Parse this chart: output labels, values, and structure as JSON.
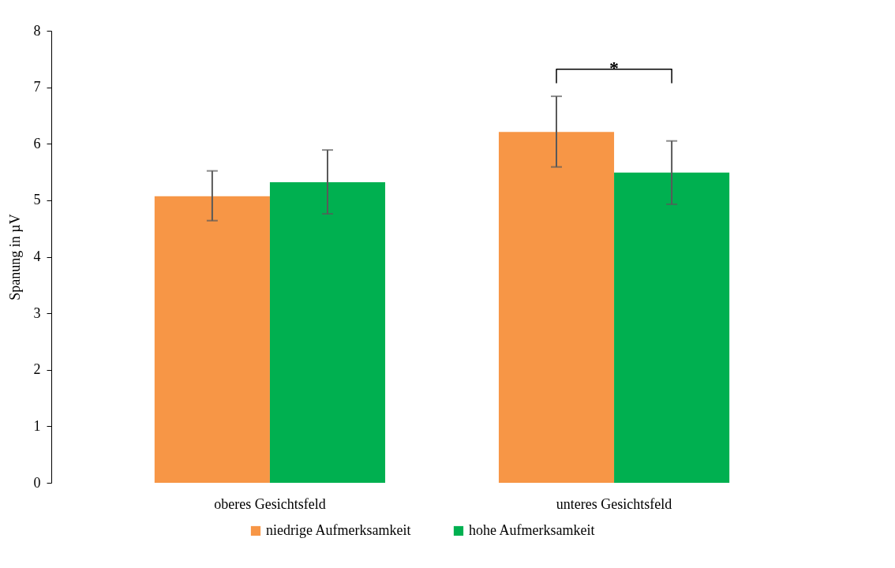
{
  "chart_data": {
    "type": "bar",
    "ylabel": "Spanung in µV",
    "categories": [
      "oberes Gesichtsfeld",
      "unteres Gesichtsfeld"
    ],
    "series": [
      {
        "name": "niedrige Aufmerksamkeit",
        "color": "#f79646",
        "values": [
          5.07,
          6.21
        ],
        "errors": [
          [
            4.64,
            5.52
          ],
          [
            5.59,
            6.84
          ]
        ]
      },
      {
        "name": "hohe Aufmerksamkeit",
        "color": "#00b050",
        "values": [
          5.32,
          5.49
        ],
        "errors": [
          [
            4.76,
            5.89
          ],
          [
            4.93,
            6.05
          ]
        ]
      }
    ],
    "ylim": [
      0,
      8
    ],
    "yticks": [
      0,
      1,
      2,
      3,
      4,
      5,
      6,
      7,
      8
    ],
    "grid": false,
    "legend": "bottom",
    "annotations": [
      "*"
    ]
  }
}
